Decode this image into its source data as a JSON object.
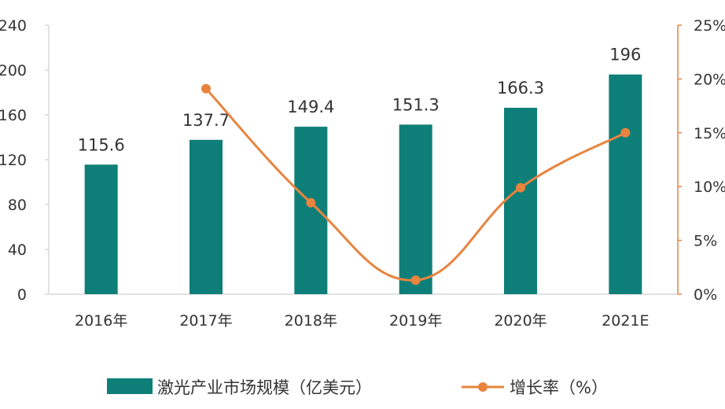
{
  "chart_data": {
    "type": "bar",
    "categories": [
      "2016年",
      "2017年",
      "2018年",
      "2019年",
      "2020年",
      "2021E"
    ],
    "series": [
      {
        "name": "激光产业市场规模（亿美元）",
        "type": "bar",
        "axis": "left",
        "values": [
          115.6,
          137.7,
          149.4,
          151.3,
          166.3,
          196
        ],
        "data_labels": [
          "115.6",
          "137.7",
          "149.4",
          "151.3",
          "166.3",
          "196"
        ],
        "color": "#0e7f78"
      },
      {
        "name": "增长率（%）",
        "type": "line",
        "axis": "right",
        "values": [
          null,
          19.1,
          8.5,
          1.3,
          9.9,
          15.0
        ],
        "color": "#e8843e"
      }
    ],
    "y_left": {
      "lim": [
        0,
        240
      ],
      "ticks": [
        "0",
        "40",
        "80",
        "120",
        "160",
        "200",
        "240"
      ]
    },
    "y_right": {
      "lim": [
        0,
        25
      ],
      "ticks": [
        "0%",
        "5%",
        "10%",
        "15%",
        "20%",
        "25%"
      ]
    },
    "grid": false,
    "legend_position": "bottom"
  },
  "colors": {
    "bar": "#0e7f78",
    "line": "#e8843e",
    "axis": "#d9d9d9",
    "right_axis": "#e8843e",
    "text": "#333333"
  }
}
